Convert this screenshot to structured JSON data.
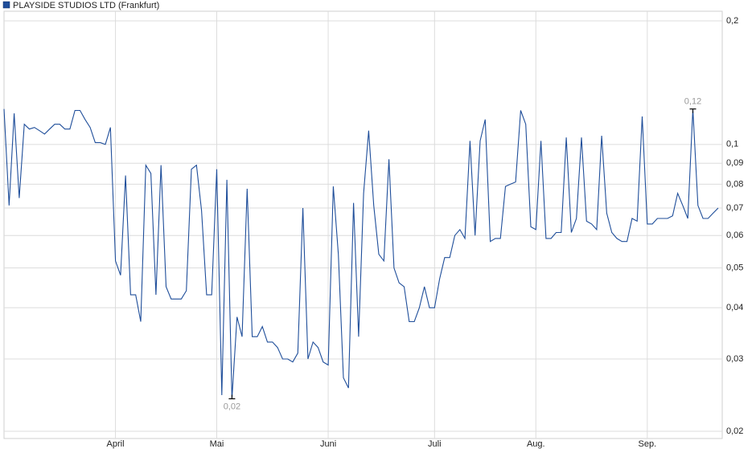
{
  "chart_data": {
    "type": "line",
    "log_scale": true,
    "grid": true,
    "legend": "top-left",
    "series": [
      {
        "name": "PLAYSIDE STUDIOS LTD (Frankfurt)",
        "color": "#1f4e9a",
        "values": [
          0.122,
          0.071,
          0.119,
          0.074,
          0.112,
          0.109,
          0.11,
          0.108,
          0.106,
          0.109,
          0.112,
          0.112,
          0.109,
          0.109,
          0.121,
          0.121,
          0.115,
          0.11,
          0.101,
          0.101,
          0.1,
          0.11,
          0.052,
          0.048,
          0.084,
          0.043,
          0.043,
          0.037,
          0.089,
          0.085,
          0.043,
          0.089,
          0.045,
          0.042,
          0.042,
          0.042,
          0.044,
          0.087,
          0.089,
          0.069,
          0.043,
          0.043,
          0.087,
          0.0245,
          0.082,
          0.024,
          0.038,
          0.034,
          0.078,
          0.034,
          0.034,
          0.036,
          0.033,
          0.033,
          0.032,
          0.03,
          0.03,
          0.0295,
          0.031,
          0.07,
          0.03,
          0.033,
          0.032,
          0.0295,
          0.029,
          0.079,
          0.054,
          0.027,
          0.0255,
          0.072,
          0.034,
          0.076,
          0.108,
          0.071,
          0.054,
          0.052,
          0.092,
          0.05,
          0.046,
          0.045,
          0.037,
          0.037,
          0.04,
          0.045,
          0.04,
          0.04,
          0.047,
          0.053,
          0.053,
          0.06,
          0.062,
          0.059,
          0.102,
          0.06,
          0.102,
          0.115,
          0.058,
          0.059,
          0.059,
          0.079,
          0.08,
          0.081,
          0.121,
          0.112,
          0.063,
          0.062,
          0.102,
          0.059,
          0.059,
          0.061,
          0.061,
          0.104,
          0.061,
          0.066,
          0.104,
          0.065,
          0.064,
          0.062,
          0.105,
          0.068,
          0.061,
          0.059,
          0.058,
          0.058,
          0.066,
          0.065,
          0.117,
          0.064,
          0.064,
          0.066,
          0.066,
          0.066,
          0.067,
          0.076,
          0.071,
          0.066,
          0.122,
          0.071,
          0.066,
          0.066,
          0.068,
          0.07
        ]
      }
    ],
    "xlim": [
      0,
      141
    ],
    "xticks": [
      {
        "value": 22,
        "label": "April"
      },
      {
        "value": 42,
        "label": "Mai"
      },
      {
        "value": 64,
        "label": "Juni"
      },
      {
        "value": 85,
        "label": "Juli"
      },
      {
        "value": 105,
        "label": "Aug."
      },
      {
        "value": 127,
        "label": "Sep."
      }
    ],
    "ylim": [
      0.02,
      0.2
    ],
    "yticks": [
      {
        "value": 0.02,
        "label": "0,02"
      },
      {
        "value": 0.03,
        "label": "0,03"
      },
      {
        "value": 0.04,
        "label": "0,04"
      },
      {
        "value": 0.05,
        "label": "0,05"
      },
      {
        "value": 0.06,
        "label": "0,06"
      },
      {
        "value": 0.07,
        "label": "0,07"
      },
      {
        "value": 0.08,
        "label": "0,08"
      },
      {
        "value": 0.09,
        "label": "0,09"
      },
      {
        "value": 0.1,
        "label": "0,1"
      },
      {
        "value": 0.2,
        "label": "0,2"
      }
    ],
    "annotations": [
      {
        "text": "0,12",
        "x": 136,
        "y": 0.122
      },
      {
        "text": "0,02",
        "x": 45,
        "y": 0.024
      }
    ]
  }
}
